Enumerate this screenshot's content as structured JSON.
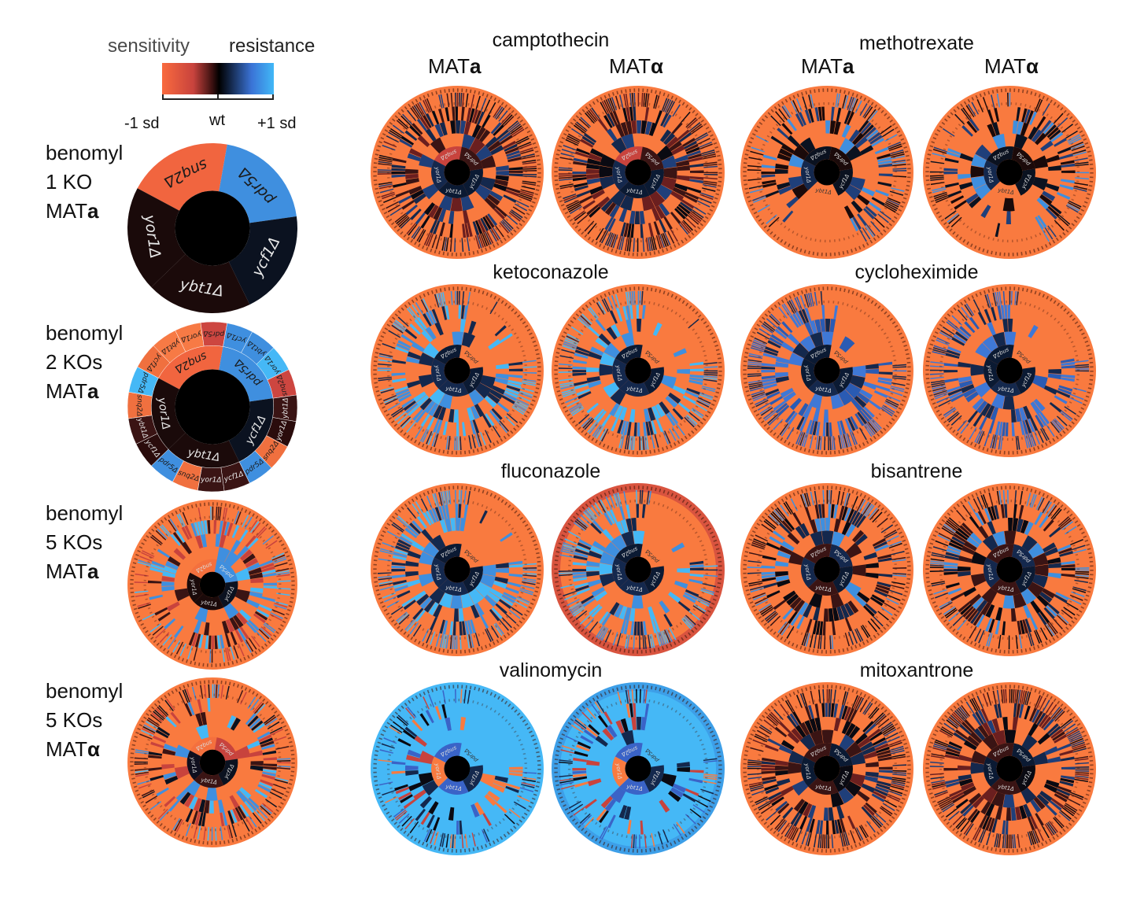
{
  "legend": {
    "left_word": "sensitivity",
    "right_word": "resistance",
    "ticks": [
      "-1 sd",
      "wt",
      "+1 sd"
    ],
    "colors": {
      "sensitive": "#f96a3e",
      "mid_sensitive": "#c8433d",
      "wt": "#000000",
      "mid_resistant": "#3a73d6",
      "resistant": "#41b8f7"
    }
  },
  "left_column": [
    {
      "label_lines": [
        "benomyl",
        "1 KO",
        "MAT"
      ],
      "mating": "a"
    },
    {
      "label_lines": [
        "benomyl",
        "2 KOs",
        "MAT"
      ],
      "mating": "a"
    },
    {
      "label_lines": [
        "benomyl",
        "5 KOs",
        "MAT"
      ],
      "mating": "a"
    },
    {
      "label_lines": [
        "benomyl",
        "5 KOs",
        "MAT"
      ],
      "mating": "α"
    }
  ],
  "column_headers": {
    "prefix": "MAT",
    "a": "a",
    "alpha": "α"
  },
  "drugs": [
    {
      "name": "camptothecin",
      "show_mating_headers": true
    },
    {
      "name": "methotrexate",
      "show_mating_headers": true
    },
    {
      "name": "ketoconazole"
    },
    {
      "name": "cycloheximide"
    },
    {
      "name": "fluconazole"
    },
    {
      "name": "bisantrene"
    },
    {
      "name": "valinomycin"
    },
    {
      "name": "mitoxantrone"
    }
  ],
  "genes": [
    "snq2Δ",
    "pdr5Δ",
    "ycf1Δ",
    "ybt1Δ",
    "yor1Δ"
  ],
  "chart_data": [
    {
      "type": "sunburst",
      "title": "benomyl 1 KO MATa",
      "levels": 1,
      "ring1": [
        {
          "gene": "snq2Δ",
          "color": "#f1653f"
        },
        {
          "gene": "pdr5Δ",
          "color": "#3f8fdf"
        },
        {
          "gene": "ycf1Δ",
          "color": "#0b1220"
        },
        {
          "gene": "ybt1Δ",
          "color": "#1b0a0a"
        },
        {
          "gene": "yor1Δ",
          "color": "#1a0a0a"
        }
      ]
    },
    {
      "type": "sunburst",
      "title": "benomyl 2 KOs MATa",
      "levels": 2,
      "ring1": [
        {
          "gene": "snq2Δ",
          "color": "#f1653f"
        },
        {
          "gene": "pdr5Δ",
          "color": "#3f8fdf"
        },
        {
          "gene": "ycf1Δ",
          "color": "#0b1220"
        },
        {
          "gene": "ybt1Δ",
          "color": "#1b0a0a"
        },
        {
          "gene": "yor1Δ",
          "color": "#1a0a0a"
        }
      ],
      "ring2": [
        {
          "parent": "snq2Δ",
          "children": [
            {
              "gene": "ycf1Δ",
              "color": "#f0703f"
            },
            {
              "gene": "ybt1Δ",
              "color": "#f77a45"
            },
            {
              "gene": "yor1Δ",
              "color": "#f77a45"
            },
            {
              "gene": "pdr5Δ",
              "color": "#cd4640"
            }
          ]
        },
        {
          "parent": "pdr5Δ",
          "children": [
            {
              "gene": "ycf1Δ",
              "color": "#3f8fdf"
            },
            {
              "gene": "ybt1Δ",
              "color": "#3f8fdf"
            },
            {
              "gene": "yor1Δ",
              "color": "#45b8f6"
            },
            {
              "gene": "snq2Δ",
              "color": "#cd4640"
            }
          ]
        },
        {
          "parent": "ycf1Δ",
          "children": [
            {
              "gene": "ybt1Δ",
              "color": "#3a1414"
            },
            {
              "gene": "yor1Δ",
              "color": "#2a0c0c"
            },
            {
              "gene": "snq2Δ",
              "color": "#f0703f"
            },
            {
              "gene": "pdr5Δ",
              "color": "#3f8fdf"
            }
          ]
        },
        {
          "parent": "ybt1Δ",
          "children": [
            {
              "gene": "ycf1Δ",
              "color": "#3a1414"
            },
            {
              "gene": "yor1Δ",
              "color": "#3a1414"
            },
            {
              "gene": "snq2Δ",
              "color": "#f0703f"
            },
            {
              "gene": "pdr5Δ",
              "color": "#3f8fdf"
            }
          ]
        },
        {
          "parent": "yor1Δ",
          "children": [
            {
              "gene": "ycf1Δ",
              "color": "#2a0c0c"
            },
            {
              "gene": "ybt1Δ",
              "color": "#3a1414"
            },
            {
              "gene": "snq2Δ",
              "color": "#f0703f"
            },
            {
              "gene": "pdr5Δ",
              "color": "#45b8f6"
            }
          ]
        }
      ]
    },
    {
      "type": "sunburst",
      "title": "benomyl 5 KOs MATa",
      "levels": 5,
      "background": "#f97a3f",
      "style": "orange-blue"
    },
    {
      "type": "sunburst",
      "title": "benomyl 5 KOs MATα",
      "levels": 5,
      "background": "#f97a3f",
      "style": "orange-mixed"
    },
    {
      "type": "sunburst",
      "title": "camptothecin MATa",
      "levels": 5,
      "background": "#f97a3f",
      "style": "dark-red"
    },
    {
      "type": "sunburst",
      "title": "camptothecin MATα",
      "levels": 5,
      "background": "#f97a3f",
      "style": "dark-red"
    },
    {
      "type": "sunburst",
      "title": "methotrexate MATa",
      "levels": 5,
      "background": "#f97a3f",
      "style": "blue-sparse"
    },
    {
      "type": "sunburst",
      "title": "methotrexate MATα",
      "levels": 5,
      "background": "#f97a3f",
      "style": "blue-sparse"
    },
    {
      "type": "sunburst",
      "title": "ketoconazole MATa",
      "levels": 5,
      "background": "#f97a3f",
      "style": "lightblue"
    },
    {
      "type": "sunburst",
      "title": "ketoconazole MATα",
      "levels": 5,
      "background": "#f97a3f",
      "style": "lightblue"
    },
    {
      "type": "sunburst",
      "title": "cycloheximide MATa",
      "levels": 5,
      "background": "#f97a3f",
      "style": "blue"
    },
    {
      "type": "sunburst",
      "title": "cycloheximide MATα",
      "levels": 5,
      "background": "#f97a3f",
      "style": "blue"
    },
    {
      "type": "sunburst",
      "title": "fluconazole MATa",
      "levels": 5,
      "background": "#f97a3f",
      "style": "lightblue"
    },
    {
      "type": "sunburst",
      "title": "fluconazole MATα",
      "levels": 5,
      "background": "#f97a3f",
      "outer_band": "#d9543f",
      "style": "lightblue"
    },
    {
      "type": "sunburst",
      "title": "bisantrene MATa",
      "levels": 5,
      "background": "#f97a3f",
      "style": "blue-dark"
    },
    {
      "type": "sunburst",
      "title": "bisantrene MATα",
      "levels": 5,
      "background": "#f97a3f",
      "style": "blue-dark"
    },
    {
      "type": "sunburst",
      "title": "valinomycin MATa",
      "levels": 5,
      "background": "#45b8f6",
      "style": "valino"
    },
    {
      "type": "sunburst",
      "title": "valinomycin MATα",
      "levels": 5,
      "background": "#45b8f6",
      "outer_band": "#3d9fe8",
      "style": "valino"
    },
    {
      "type": "sunburst",
      "title": "mitoxantrone MATa",
      "levels": 5,
      "background": "#f97a3f",
      "style": "dark-mixed"
    },
    {
      "type": "sunburst",
      "title": "mitoxantrone MATα",
      "levels": 5,
      "background": "#f97a3f",
      "style": "dark-mixed"
    }
  ]
}
